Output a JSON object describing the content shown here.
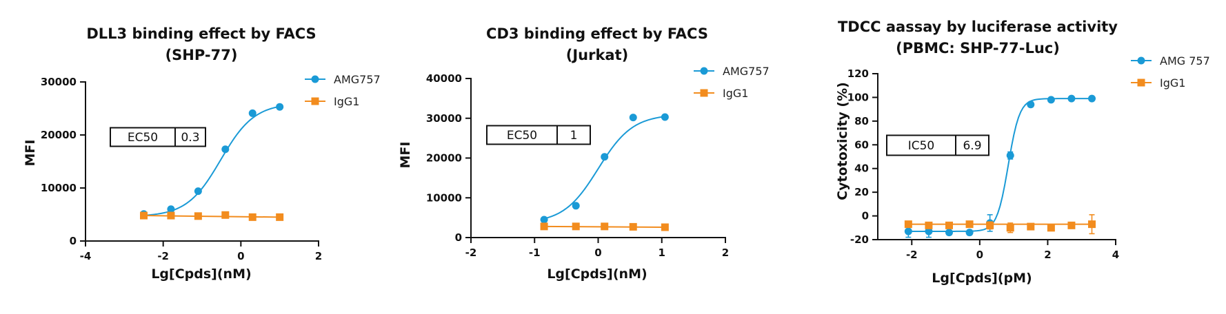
{
  "chart_data": [
    {
      "type": "scatter",
      "title": [
        "DLL3 binding effect  by FACS",
        "(SHP-77)"
      ],
      "xlabel": "Lg[Cpds](nM)",
      "ylabel": "MFI",
      "xlim": [
        -4,
        2
      ],
      "ylim": [
        0,
        30000
      ],
      "xticks": [
        -4,
        -2,
        0,
        2
      ],
      "yticks": [
        0,
        10000,
        20000,
        30000
      ],
      "legend_position": "top-right",
      "series": [
        {
          "name": "AMG757",
          "color": "#1a9ad6",
          "marker": "circle",
          "fit": {
            "bottom": 4600,
            "top": 26000,
            "logec50": -0.52,
            "hill": 1.0
          },
          "points": [
            [
              -2.5,
              5100
            ],
            [
              -1.8,
              6000
            ],
            [
              -1.1,
              9400
            ],
            [
              -0.4,
              17300
            ],
            [
              0.3,
              24100
            ],
            [
              1.0,
              25300
            ]
          ]
        },
        {
          "name": "IgG1",
          "color": "#f28c1e",
          "marker": "square",
          "fit": {
            "flat": true
          },
          "points": [
            [
              -2.5,
              4800
            ],
            [
              -1.8,
              4800
            ],
            [
              -1.1,
              4700
            ],
            [
              -0.4,
              4900
            ],
            [
              0.3,
              4500
            ],
            [
              1.0,
              4500
            ]
          ]
        }
      ],
      "box": {
        "label": "EC50",
        "value": "0.3"
      }
    },
    {
      "type": "scatter",
      "title": [
        "CD3 binding effect  by FACS",
        "(Jurkat)"
      ],
      "xlabel": "Lg[Cpds](nM)",
      "ylabel": "MFI",
      "xlim": [
        -2,
        2
      ],
      "ylim": [
        0,
        40000
      ],
      "xticks": [
        -2,
        -1,
        0,
        1,
        2
      ],
      "yticks": [
        0,
        10000,
        20000,
        30000,
        40000
      ],
      "legend_position": "top-right",
      "series": [
        {
          "name": "AMG757",
          "color": "#1a9ad6",
          "marker": "circle",
          "fit": {
            "bottom": 3600,
            "top": 31000,
            "logec50": 0.0,
            "hill": 1.6
          },
          "points": [
            [
              -0.85,
              4500
            ],
            [
              -0.35,
              8000
            ],
            [
              0.1,
              20300
            ],
            [
              0.55,
              30200
            ],
            [
              1.05,
              30300
            ]
          ]
        },
        {
          "name": "IgG1",
          "color": "#f28c1e",
          "marker": "square",
          "fit": {
            "flat": true
          },
          "points": [
            [
              -0.85,
              2800
            ],
            [
              -0.35,
              2800
            ],
            [
              0.1,
              2800
            ],
            [
              0.55,
              2700
            ],
            [
              1.05,
              2600
            ]
          ]
        }
      ],
      "box": {
        "label": "EC50",
        "value": "1"
      }
    },
    {
      "type": "scatter",
      "title": [
        "TDCC aassay by luciferase activity",
        "(PBMC: SHP-77-Luc)"
      ],
      "xlabel": "Lg[Cpds](pM)",
      "ylabel": "Cytotoxicity (%)",
      "xlim": [
        -3,
        4
      ],
      "ylim": [
        -20,
        120
      ],
      "xticks": [
        -2,
        0,
        2,
        4
      ],
      "yticks": [
        -20,
        0,
        20,
        40,
        60,
        80,
        100,
        120
      ],
      "legend_position": "top-right",
      "series": [
        {
          "name": "AMG 757",
          "color": "#1a9ad6",
          "marker": "circle",
          "fit": {
            "bottom": -13,
            "top": 99,
            "logec50": 0.84,
            "hill": 2.6
          },
          "points": [
            [
              -2.1,
              -13
            ],
            [
              -1.5,
              -13
            ],
            [
              -0.9,
              -14
            ],
            [
              -0.3,
              -14
            ],
            [
              0.3,
              -6
            ],
            [
              0.9,
              51
            ],
            [
              1.5,
              94
            ],
            [
              2.1,
              98
            ],
            [
              2.7,
              99
            ],
            [
              3.3,
              99
            ]
          ],
          "errors": [
            5,
            5,
            2,
            2,
            7,
            3,
            2,
            1,
            1,
            1
          ]
        },
        {
          "name": "IgG1",
          "color": "#f28c1e",
          "marker": "square",
          "fit": {
            "flat": true
          },
          "points": [
            [
              -2.1,
              -7
            ],
            [
              -1.5,
              -8
            ],
            [
              -0.9,
              -8
            ],
            [
              -0.3,
              -7
            ],
            [
              0.3,
              -8
            ],
            [
              0.9,
              -10
            ],
            [
              1.5,
              -9
            ],
            [
              2.1,
              -10
            ],
            [
              2.7,
              -8
            ],
            [
              3.3,
              -7
            ]
          ],
          "errors": [
            2,
            2,
            1,
            2,
            3,
            4,
            2,
            1,
            1,
            8
          ]
        }
      ],
      "box": {
        "label": "IC50",
        "value": "6.9"
      }
    }
  ]
}
